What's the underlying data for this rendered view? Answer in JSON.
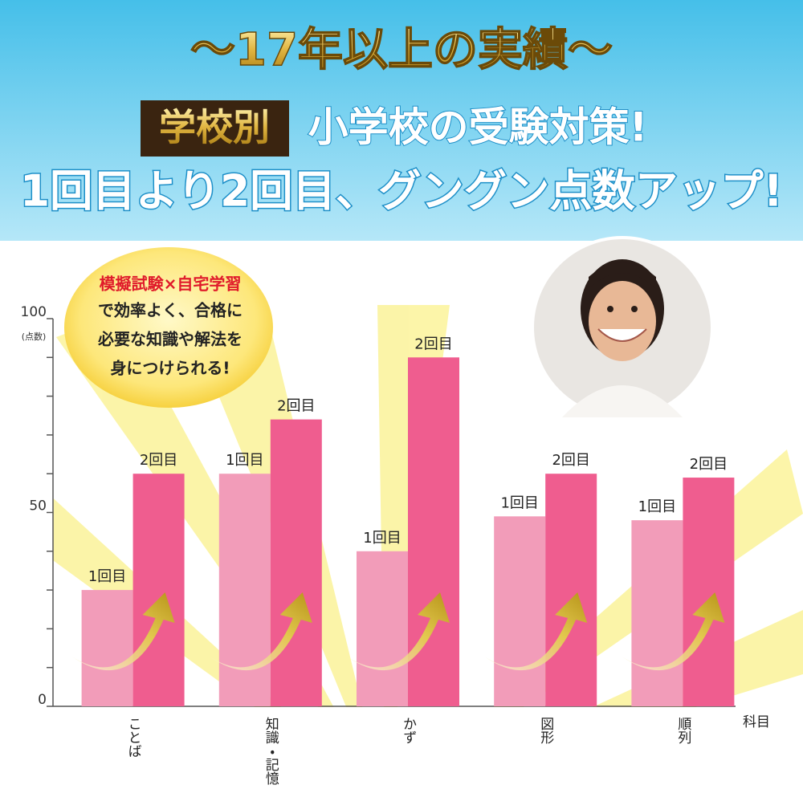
{
  "banner": {
    "headline": "〜17年以上の実績〜",
    "badge": "学校別",
    "subhead": "小学校の受験対策!",
    "tagline": "1回目より2回目、グングン点数アップ!"
  },
  "bubble": {
    "highlight": "模擬試験×自宅学習",
    "lines": [
      "で効率よく、合格に",
      "必要な知識や解法を",
      "身につけられる!"
    ]
  },
  "chart_data": {
    "type": "bar",
    "y_label": "(点数)",
    "x_label": "科目",
    "categories": [
      "ことば",
      "知識・記憶",
      "かず",
      "図形",
      "順列"
    ],
    "series": [
      {
        "name": "1回目",
        "color": "#f29cb9",
        "values": [
          30,
          60,
          40,
          49,
          48
        ]
      },
      {
        "name": "2回目",
        "color": "#ef5d8f",
        "values": [
          60,
          74,
          90,
          60,
          59
        ]
      }
    ],
    "ylim": [
      0,
      100
    ],
    "yticks": [
      0,
      50,
      100
    ],
    "yminorticks": [
      10,
      20,
      30,
      40,
      60,
      70,
      80,
      90
    ]
  }
}
